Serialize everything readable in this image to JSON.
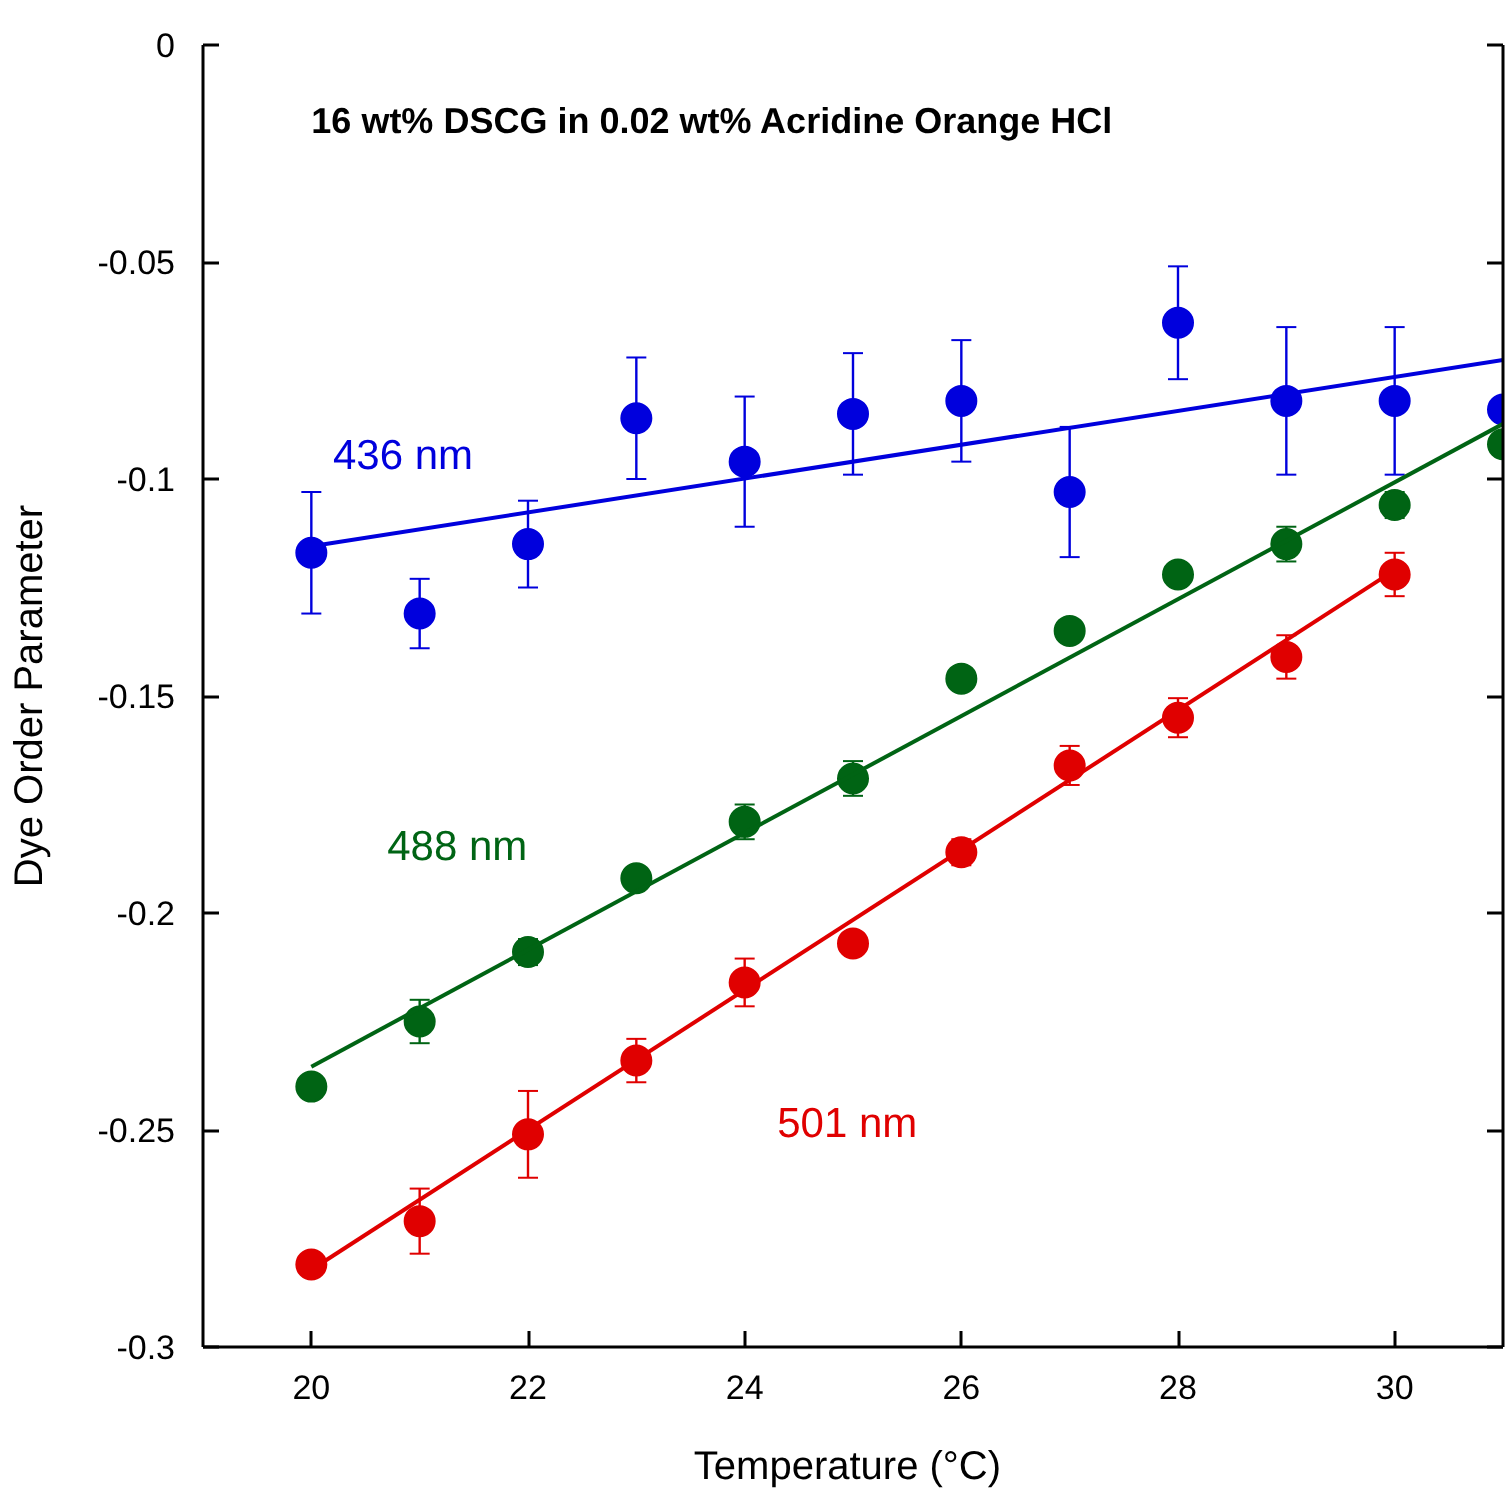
{
  "chart_data": {
    "type": "scatter",
    "title": "16 wt% DSCG in 0.02 wt% Acridine Orange HCl",
    "xlabel": "Temperature  (°C)",
    "ylabel": "Dye Order Parameter",
    "x": [
      20,
      21,
      22,
      23,
      24,
      25,
      26,
      27,
      28,
      29,
      30,
      31
    ],
    "series": [
      {
        "name": "436 nm",
        "color": "#0000dd",
        "values": [
          -0.117,
          -0.131,
          -0.115,
          -0.086,
          -0.096,
          -0.085,
          -0.082,
          -0.103,
          -0.064,
          -0.082,
          -0.082,
          -0.084
        ],
        "errors": [
          0.014,
          0.008,
          0.01,
          0.014,
          0.015,
          0.014,
          0.014,
          0.015,
          0.013,
          0.017,
          0.017,
          null
        ]
      },
      {
        "name": "488 nm",
        "color": "#006414",
        "values": [
          -0.24,
          -0.225,
          -0.209,
          -0.192,
          -0.179,
          -0.169,
          -0.146,
          -0.135,
          -0.122,
          -0.115,
          -0.106,
          -0.092
        ],
        "errors": [
          0.002,
          0.005,
          0.003,
          0.002,
          0.004,
          0.004,
          null,
          null,
          null,
          0.004,
          0.003,
          null
        ]
      },
      {
        "name": "501 nm",
        "color": "#e00000",
        "values": [
          -0.281,
          -0.271,
          -0.251,
          -0.234,
          -0.216,
          -0.207,
          -0.186,
          -0.166,
          -0.155,
          -0.141,
          -0.122,
          null
        ],
        "errors": [
          0.002,
          0.0075,
          0.01,
          0.005,
          0.0055,
          0.002,
          0.003,
          0.0045,
          0.0045,
          0.005,
          0.005,
          null
        ]
      },
      {
        "type": "line",
        "marker": "none",
        "color": "#0000dd",
        "x": [
          20,
          31
        ],
        "values": [
          -0.1155,
          -0.0726
        ]
      },
      {
        "type": "line",
        "marker": "none",
        "color": "#006414",
        "x": [
          20,
          31
        ],
        "values": [
          -0.2354,
          -0.0873
        ]
      },
      {
        "type": "line",
        "marker": "none",
        "color": "#e00000",
        "x": [
          20,
          30
        ],
        "values": [
          -0.2822,
          -0.121
        ]
      }
    ],
    "xlim": [
      19,
      31
    ],
    "xticks": [
      20,
      22,
      24,
      26,
      28,
      30
    ],
    "ylim": [
      -0.3,
      0
    ],
    "yticks": [
      {
        "value": -0.3,
        "label": "-0.3"
      },
      -0.25,
      {
        "value": -0.2,
        "label": "-0.2"
      },
      {
        "value": -0.15,
        "label": "-0.15"
      },
      {
        "value": -0.1,
        "label": "-0.1"
      },
      -0.05,
      0
    ],
    "marker": "circle",
    "grid": false
  }
}
